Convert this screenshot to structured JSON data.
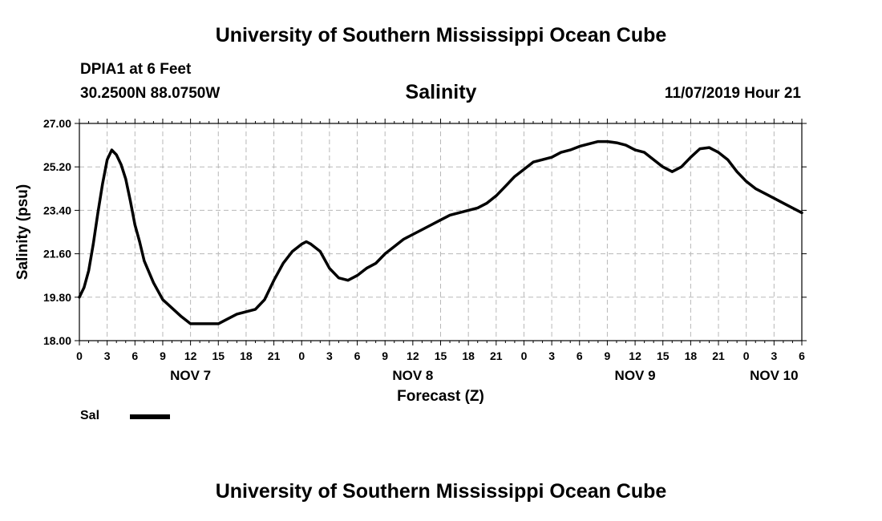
{
  "header": {
    "title": "University of Southern Mississippi Ocean Cube",
    "station": "DPIA1 at 6 Feet",
    "coordinates": "30.2500N 88.0750W",
    "variable": "Salinity",
    "datetime": "11/07/2019 Hour 21"
  },
  "footer": {
    "title": "University of Southern Mississippi Ocean Cube"
  },
  "legend": {
    "label": "Sal",
    "color": "#000000"
  },
  "chart_data": {
    "type": "line",
    "title": "Salinity",
    "xlabel": "Forecast (Z)",
    "ylabel": "Salinity (psu)",
    "ylim": [
      18.0,
      27.0
    ],
    "xlim": [
      0,
      78
    ],
    "y_ticks": [
      "18.00",
      "19.80",
      "21.60",
      "23.40",
      "25.20",
      "27.00"
    ],
    "x_ticks": [
      "0",
      "3",
      "6",
      "9",
      "12",
      "15",
      "18",
      "21",
      "0",
      "3",
      "6",
      "9",
      "12",
      "15",
      "18",
      "21",
      "0",
      "3",
      "6",
      "9",
      "12",
      "15",
      "18",
      "21",
      "0",
      "3",
      "6"
    ],
    "date_labels": [
      {
        "label": "NOV 7",
        "hour": 12
      },
      {
        "label": "NOV 8",
        "hour": 36
      },
      {
        "label": "NOV 9",
        "hour": 60
      },
      {
        "label": "NOV 10",
        "hour": 75
      }
    ],
    "grid": true,
    "series": [
      {
        "name": "Sal",
        "color": "#000000",
        "x": [
          0,
          0.5,
          1,
          1.5,
          2,
          2.5,
          3,
          3.5,
          4,
          4.5,
          5,
          5.5,
          6,
          6.5,
          7,
          8,
          9,
          10,
          11,
          12,
          13,
          14,
          15,
          16,
          17,
          18,
          19,
          20,
          21,
          22,
          23,
          24,
          24.5,
          25,
          26,
          27,
          28,
          29,
          30,
          31,
          32,
          33,
          34,
          35,
          36,
          37,
          38,
          39,
          40,
          41,
          42,
          43,
          44,
          45,
          46,
          47,
          48,
          49,
          50,
          51,
          52,
          53,
          54,
          55,
          56,
          57,
          58,
          59,
          60,
          61,
          62,
          63,
          64,
          65,
          66,
          67,
          68,
          69,
          70,
          71,
          72,
          73,
          74,
          75,
          76,
          77,
          78
        ],
        "y": [
          19.8,
          20.2,
          20.9,
          22.0,
          23.3,
          24.5,
          25.5,
          25.9,
          25.7,
          25.3,
          24.7,
          23.8,
          22.8,
          22.1,
          21.3,
          20.4,
          19.7,
          19.35,
          19.0,
          18.7,
          18.7,
          18.7,
          18.7,
          18.9,
          19.1,
          19.2,
          19.3,
          19.7,
          20.5,
          21.2,
          21.7,
          22.0,
          22.1,
          22.0,
          21.7,
          21.0,
          20.6,
          20.5,
          20.7,
          21.0,
          21.2,
          21.6,
          21.9,
          22.2,
          22.4,
          22.6,
          22.8,
          23.0,
          23.2,
          23.3,
          23.4,
          23.5,
          23.7,
          24.0,
          24.4,
          24.8,
          25.1,
          25.4,
          25.5,
          25.6,
          25.8,
          25.9,
          26.05,
          26.15,
          26.25,
          26.25,
          26.2,
          26.1,
          25.9,
          25.8,
          25.5,
          25.2,
          25.0,
          25.2,
          25.6,
          25.95,
          26.0,
          25.8,
          25.5,
          25.0,
          24.6,
          24.3,
          24.1,
          23.9,
          23.7,
          23.5,
          23.3
        ]
      }
    ]
  }
}
